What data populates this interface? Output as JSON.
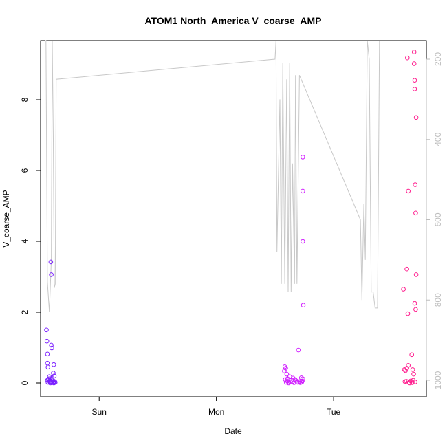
{
  "chart_data": {
    "type": "scatter",
    "title": "ATOM1 North_America V_coarse_AMP",
    "xlabel": "Date",
    "ylabel": "V_coarse_AMP",
    "x_ticks": [
      "Sun",
      "Mon",
      "Tue"
    ],
    "y_ticks": [
      "0",
      "2",
      "4",
      "6",
      "8"
    ],
    "y2_ticks": [
      "200",
      "400",
      "600",
      "800",
      "1000"
    ],
    "ylim": [
      0,
      9.7
    ],
    "y2lim": [
      1020,
      120
    ],
    "xlim_hours": [
      -12,
      67
    ],
    "grid": false,
    "secondary_line_color": "#c8c8c8",
    "point_colors": [
      "#7a1fff",
      "#d01fff",
      "#ff1a8c"
    ],
    "series": [
      {
        "points": [
          [
            -10.8,
            1.5
          ],
          [
            -10.7,
            1.18
          ],
          [
            -10.6,
            0.82
          ],
          [
            -10.6,
            0.56
          ],
          [
            -10.5,
            0.45
          ],
          [
            -9.9,
            3.42
          ],
          [
            -9.8,
            3.06
          ],
          [
            -9.8,
            1.07
          ],
          [
            -9.7,
            0.99
          ],
          [
            -9.3,
            0.52
          ],
          [
            -9.4,
            0.28
          ],
          [
            -9.2,
            0.2
          ],
          [
            -10.4,
            0.1
          ],
          [
            -10.2,
            0.06
          ],
          [
            -10.0,
            0.04
          ],
          [
            -9.9,
            0.02
          ],
          [
            -9.6,
            0.15
          ],
          [
            -9.5,
            0.08
          ],
          [
            -9.4,
            0.03
          ],
          [
            -9.2,
            0.01
          ],
          [
            -10.6,
            0.08
          ],
          [
            -10.3,
            0.12
          ],
          [
            -10.1,
            0.03
          ],
          [
            -9.7,
            0.02
          ],
          [
            -9.1,
            0.04
          ],
          [
            -10.5,
            0.02
          ],
          [
            -10.0,
            0.0
          ],
          [
            -9.3,
            0.0
          ],
          [
            -9.0,
            0.02
          ],
          [
            -10.2,
            0.18
          ]
        ]
      },
      {
        "points": [
          [
            37.9,
            0.34
          ],
          [
            38.0,
            0.46
          ],
          [
            38.2,
            0.42
          ],
          [
            38.1,
            0.1
          ],
          [
            38.4,
            0.25
          ],
          [
            38.6,
            0.12
          ],
          [
            39.0,
            0.18
          ],
          [
            39.4,
            0.08
          ],
          [
            39.7,
            0.14
          ],
          [
            40.1,
            0.1
          ],
          [
            40.5,
            0.03
          ],
          [
            40.8,
            0.93
          ],
          [
            41.0,
            0.04
          ],
          [
            41.4,
            0.15
          ],
          [
            41.6,
            0.06
          ],
          [
            41.7,
            6.38
          ],
          [
            41.7,
            5.42
          ],
          [
            41.7,
            4.0
          ],
          [
            41.8,
            2.2
          ],
          [
            41.7,
            0.12
          ],
          [
            38.3,
            0.02
          ],
          [
            38.8,
            0.0
          ],
          [
            39.2,
            0.03
          ],
          [
            39.9,
            0.01
          ],
          [
            40.3,
            0.07
          ],
          [
            40.7,
            0.02
          ],
          [
            41.2,
            0.01
          ],
          [
            41.5,
            0.03
          ],
          [
            39.6,
            0.04
          ],
          [
            38.5,
            0.06
          ]
        ]
      },
      {
        "points": [
          [
            62.3,
            2.65
          ],
          [
            62.5,
            0.38
          ],
          [
            62.7,
            0.35
          ],
          [
            63.0,
            0.42
          ],
          [
            63.3,
            0.5
          ],
          [
            63.0,
            3.22
          ],
          [
            63.2,
            1.96
          ],
          [
            63.3,
            5.42
          ],
          [
            63.1,
            9.18
          ],
          [
            64.0,
            0.8
          ],
          [
            64.2,
            0.38
          ],
          [
            64.4,
            0.25
          ],
          [
            64.5,
            9.35
          ],
          [
            64.5,
            9.02
          ],
          [
            64.6,
            8.55
          ],
          [
            64.6,
            8.3
          ],
          [
            64.7,
            5.6
          ],
          [
            64.8,
            4.8
          ],
          [
            64.9,
            3.06
          ],
          [
            64.6,
            2.25
          ],
          [
            64.8,
            2.08
          ],
          [
            64.9,
            7.5
          ],
          [
            62.6,
            0.04
          ],
          [
            63.5,
            0.02
          ],
          [
            63.8,
            0.06
          ],
          [
            64.1,
            0.01
          ],
          [
            64.3,
            0.08
          ],
          [
            64.7,
            0.03
          ],
          [
            62.9,
            0.05
          ],
          [
            63.6,
            0.0
          ]
        ]
      }
    ],
    "secondary_line": {
      "axis": "right",
      "points": [
        [
          -11.1,
          120
        ],
        [
          -10.9,
          120
        ],
        [
          -10.6,
          755
        ],
        [
          -10.2,
          830
        ],
        [
          -9.8,
          700
        ],
        [
          -9.6,
          120
        ],
        [
          -9.4,
          400
        ],
        [
          -9.2,
          770
        ],
        [
          -9.0,
          760
        ],
        [
          -8.8,
          250
        ],
        [
          36.0,
          200
        ],
        [
          36.2,
          120
        ],
        [
          36.4,
          680
        ],
        [
          37.0,
          300
        ],
        [
          37.3,
          760
        ],
        [
          37.6,
          210
        ],
        [
          38.0,
          760
        ],
        [
          38.4,
          250
        ],
        [
          38.7,
          780
        ],
        [
          39.0,
          210
        ],
        [
          39.3,
          780
        ],
        [
          39.6,
          460
        ],
        [
          40.0,
          760
        ],
        [
          40.2,
          240
        ],
        [
          40.5,
          760
        ],
        [
          41.0,
          240
        ],
        [
          53.5,
          600
        ],
        [
          53.8,
          800
        ],
        [
          54.2,
          560
        ],
        [
          54.5,
          700
        ],
        [
          54.9,
          120
        ],
        [
          55.3,
          200
        ],
        [
          55.7,
          780
        ],
        [
          56.1,
          780
        ],
        [
          56.5,
          820
        ],
        [
          57.0,
          820
        ],
        [
          57.4,
          120
        ]
      ]
    }
  }
}
